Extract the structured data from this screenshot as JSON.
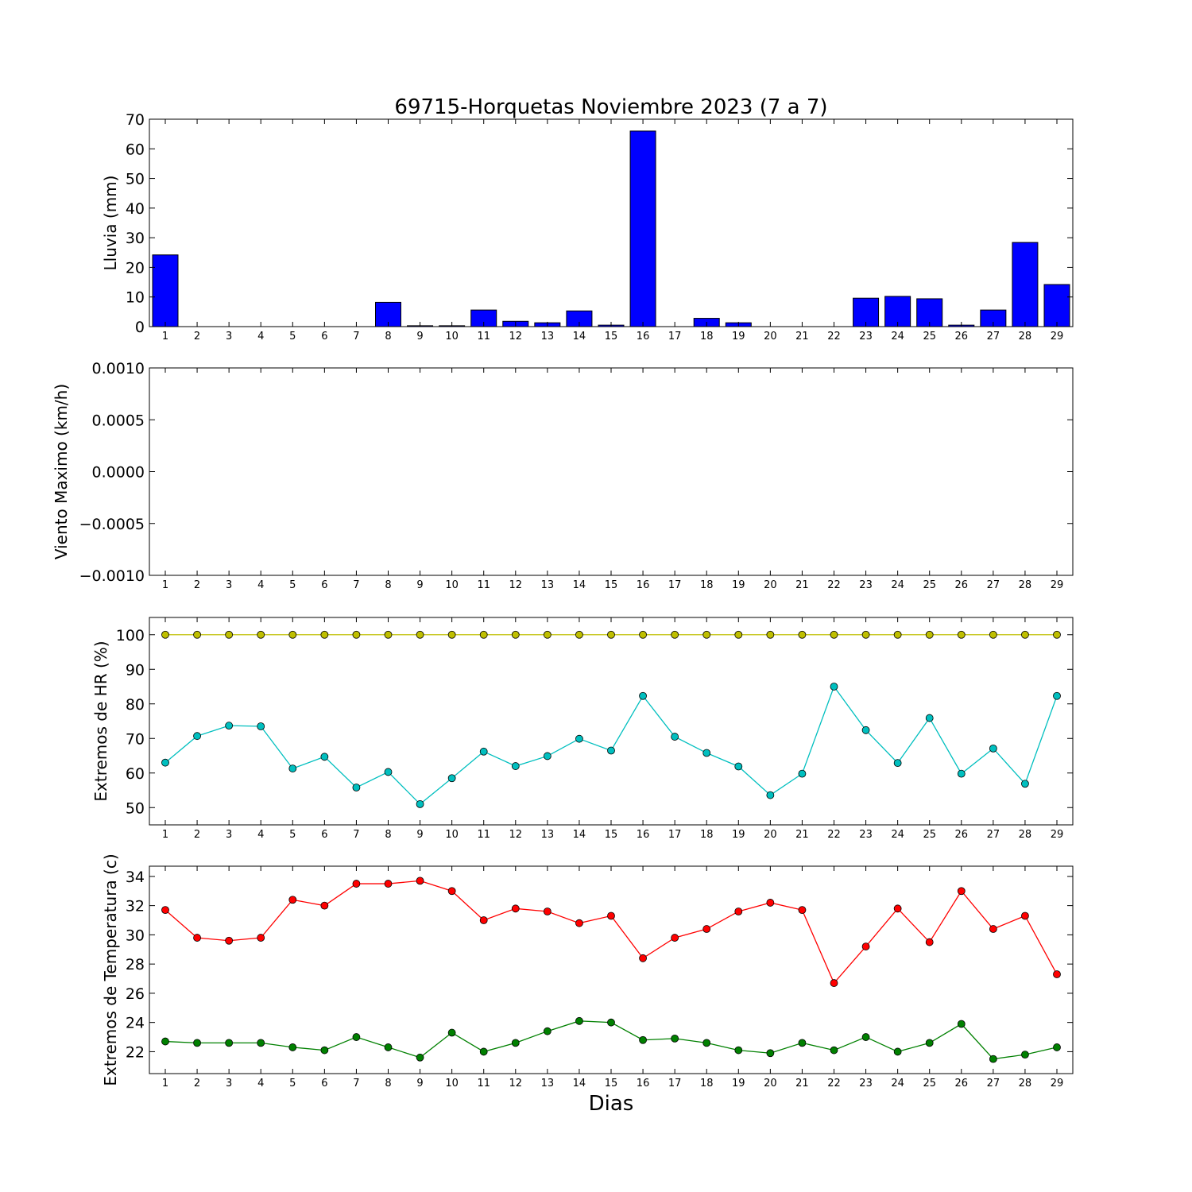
{
  "chart_data": [
    {
      "type": "bar",
      "title": "69715-Horquetas Noviembre 2023  (7 a 7)",
      "xlabel": "",
      "ylabel": "Lluvia (mm)",
      "categories": [
        "1",
        "2",
        "3",
        "4",
        "5",
        "6",
        "7",
        "8",
        "9",
        "10",
        "11",
        "12",
        "13",
        "14",
        "15",
        "16",
        "17",
        "18",
        "19",
        "20",
        "21",
        "22",
        "23",
        "24",
        "25",
        "26",
        "27",
        "28",
        "29"
      ],
      "values": [
        24.2,
        0,
        0,
        0,
        0,
        0,
        0,
        8.2,
        0.3,
        0.3,
        5.6,
        1.8,
        1.3,
        5.3,
        0.5,
        66.0,
        0,
        2.8,
        1.3,
        0,
        0,
        0,
        9.6,
        10.2,
        9.4,
        0.5,
        5.6,
        28.4,
        14.2
      ],
      "ylim": [
        0,
        70
      ],
      "yticks": [
        "0",
        "10",
        "20",
        "30",
        "40",
        "50",
        "60",
        "70"
      ],
      "bar_color": "#0000ff",
      "grid": false
    },
    {
      "type": "line",
      "title": "",
      "xlabel": "",
      "ylabel": "Viento Maximo (km/h)",
      "categories": [
        "1",
        "2",
        "3",
        "4",
        "5",
        "6",
        "7",
        "8",
        "9",
        "10",
        "11",
        "12",
        "13",
        "14",
        "15",
        "16",
        "17",
        "18",
        "19",
        "20",
        "21",
        "22",
        "23",
        "24",
        "25",
        "26",
        "27",
        "28",
        "29"
      ],
      "series": [],
      "ylim": [
        -0.001,
        0.001
      ],
      "yticks": [
        "−0.0010",
        "−0.0005",
        "0.0000",
        "0.0005",
        "0.0010"
      ],
      "grid": false
    },
    {
      "type": "line",
      "title": "",
      "xlabel": "",
      "ylabel": "Extremos de HR (%)",
      "categories": [
        "1",
        "2",
        "3",
        "4",
        "5",
        "6",
        "7",
        "8",
        "9",
        "10",
        "11",
        "12",
        "13",
        "14",
        "15",
        "16",
        "17",
        "18",
        "19",
        "20",
        "21",
        "22",
        "23",
        "24",
        "25",
        "26",
        "27",
        "28",
        "29"
      ],
      "series": [
        {
          "color": "#bfbf00",
          "values": [
            100,
            100,
            100,
            100,
            100,
            100,
            100,
            100,
            100,
            100,
            100,
            100,
            100,
            100,
            100,
            100,
            100,
            100,
            100,
            100,
            100,
            100,
            100,
            100,
            100,
            100,
            100,
            100,
            100
          ]
        },
        {
          "color": "#00bfbf",
          "values": [
            63,
            70.7,
            73.7,
            73.5,
            61.3,
            64.7,
            55.8,
            60.3,
            51,
            58.5,
            66.2,
            62,
            64.9,
            69.9,
            66.5,
            82.3,
            70.5,
            65.8,
            61.9,
            53.6,
            59.8,
            85,
            72.4,
            62.9,
            75.9,
            59.8,
            67.1,
            56.9,
            82.3
          ]
        }
      ],
      "ylim": [
        45,
        105
      ],
      "yticks": [
        "50",
        "60",
        "70",
        "80",
        "90",
        "100"
      ],
      "grid": false
    },
    {
      "type": "line",
      "title": "",
      "xlabel": "Dias",
      "ylabel": "Extremos de Temperatura (c)",
      "categories": [
        "1",
        "2",
        "3",
        "4",
        "5",
        "6",
        "7",
        "8",
        "9",
        "10",
        "11",
        "12",
        "13",
        "14",
        "15",
        "16",
        "17",
        "18",
        "19",
        "20",
        "21",
        "22",
        "23",
        "24",
        "25",
        "26",
        "27",
        "28",
        "29"
      ],
      "series": [
        {
          "color": "#ff0000",
          "values": [
            31.7,
            29.8,
            29.6,
            29.8,
            32.4,
            32,
            33.5,
            33.5,
            33.7,
            33,
            31,
            31.8,
            31.6,
            30.8,
            31.3,
            28.4,
            29.8,
            30.4,
            31.6,
            32.2,
            31.7,
            26.7,
            29.2,
            31.8,
            29.5,
            33,
            30.4,
            31.3,
            27.3
          ]
        },
        {
          "color": "#008000",
          "values": [
            22.7,
            22.6,
            22.6,
            22.6,
            22.3,
            22.1,
            23,
            22.3,
            21.6,
            23.3,
            22,
            22.6,
            23.4,
            24.1,
            24,
            22.8,
            22.9,
            22.6,
            22.1,
            21.9,
            22.6,
            22.1,
            23,
            22,
            22.6,
            23.9,
            21.5,
            21.8,
            22.3
          ]
        }
      ],
      "ylim": [
        20.5,
        34.7
      ],
      "yticks": [
        "22",
        "24",
        "26",
        "28",
        "30",
        "32",
        "34"
      ],
      "grid": false
    }
  ]
}
